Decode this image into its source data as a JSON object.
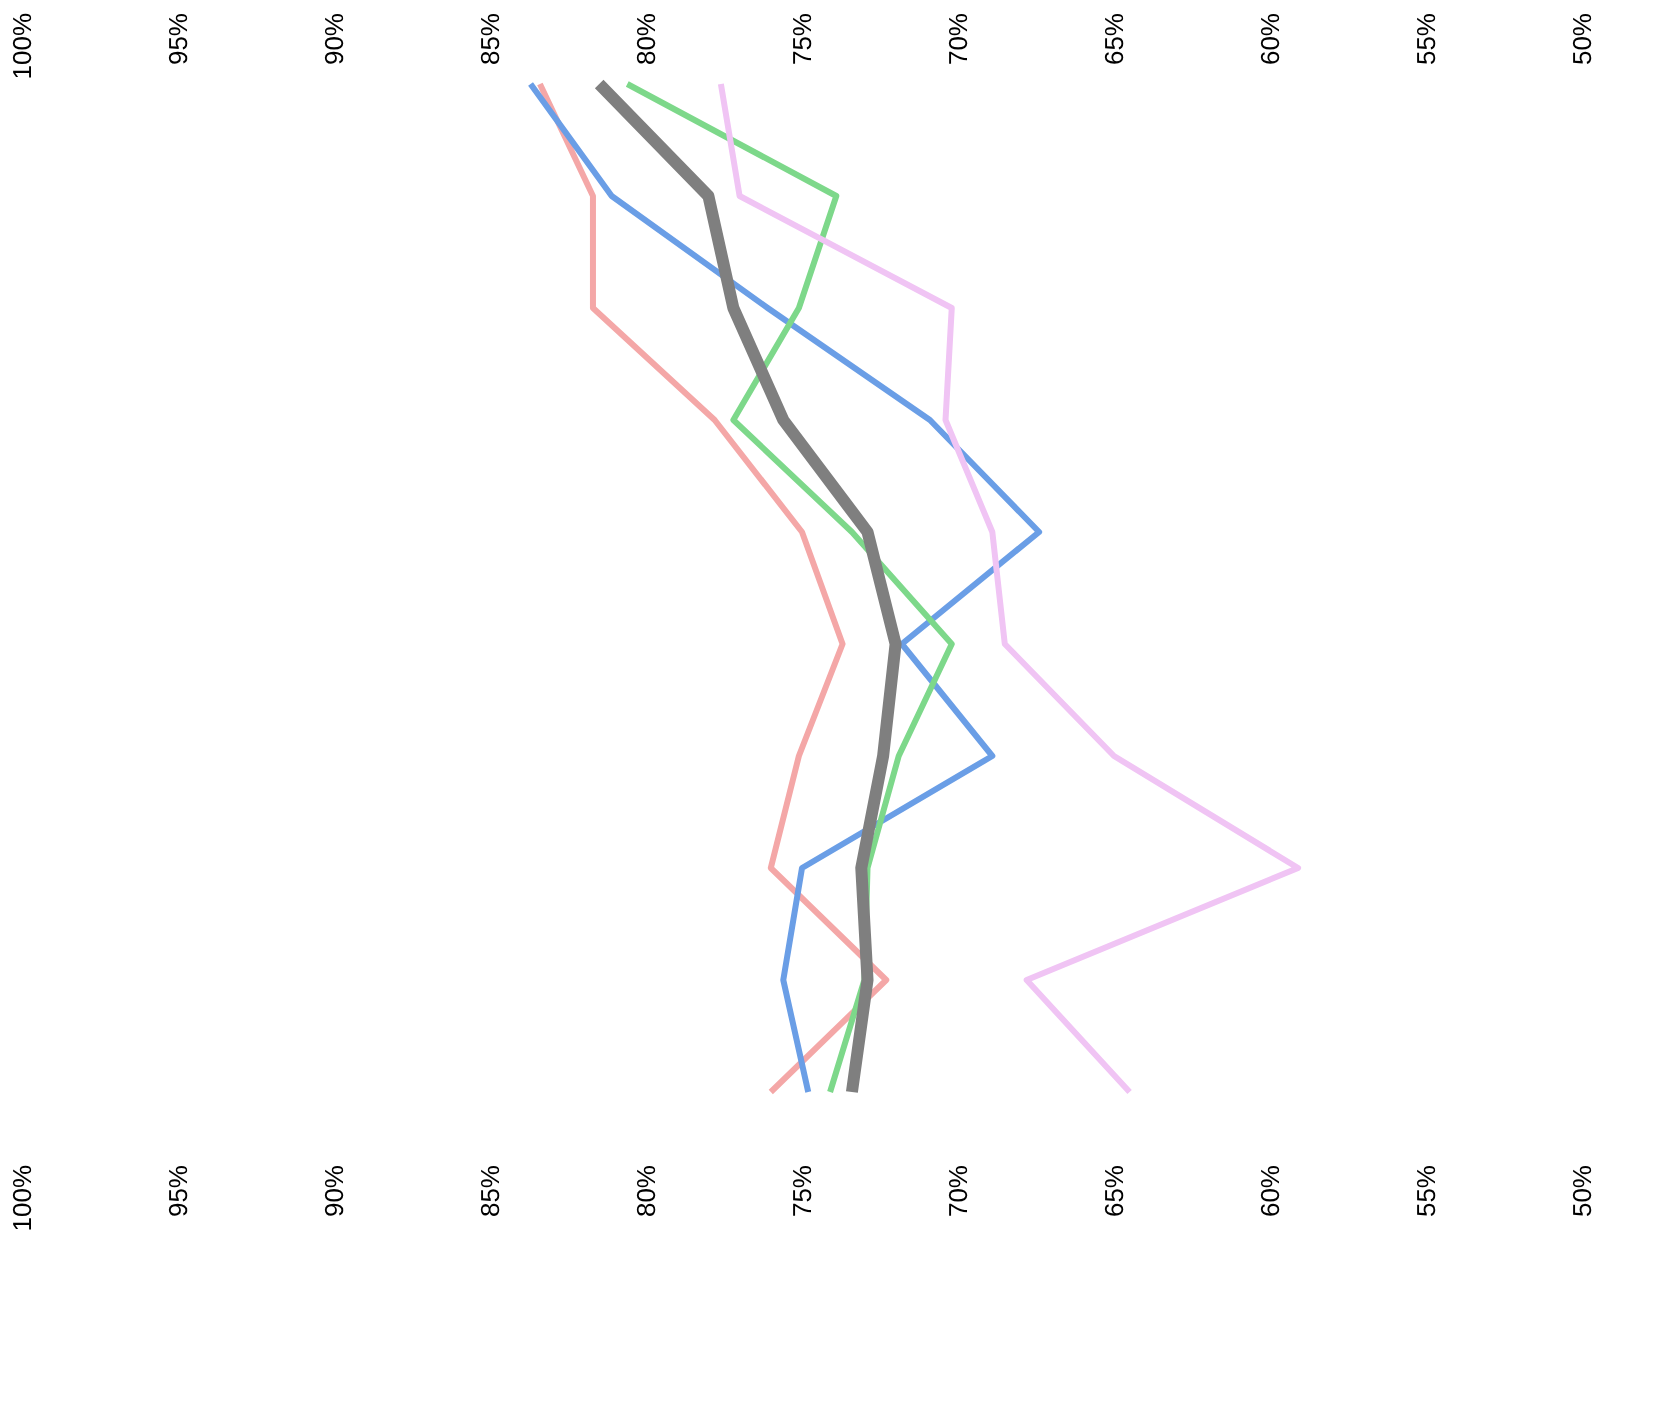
{
  "chart_data": {
    "type": "line",
    "categories": [
      null,
      null,
      null,
      null,
      null,
      null,
      null,
      null,
      null,
      null
    ],
    "series": [
      {
        "color": "#f4a7a7",
        "values": [
          83.4,
          81.7,
          81.7,
          77.8,
          75.0,
          73.7,
          75.1,
          76.0,
          72.3,
          76.0
        ]
      },
      {
        "color": "#6a9ee6",
        "values": [
          83.7,
          81.1,
          76.1,
          70.9,
          67.4,
          71.8,
          68.9,
          75.0,
          75.6,
          74.8
        ]
      },
      {
        "color": "#7dd88a",
        "values": [
          80.6,
          73.9,
          75.1,
          77.2,
          73.4,
          70.2,
          71.9,
          72.9,
          73.0,
          74.1
        ]
      },
      {
        "color": "#f0c4f4",
        "values": [
          77.6,
          77.0,
          70.2,
          70.4,
          68.9,
          68.5,
          65.0,
          59.1,
          67.8,
          64.5
        ]
      },
      {
        "color": "#7f7f7f",
        "values": [
          81.5,
          78.0,
          77.2,
          75.6,
          72.9,
          72.0,
          72.4,
          73.1,
          72.9,
          73.4
        ]
      }
    ],
    "xlim": [
      100,
      50
    ],
    "xticks": [
      {
        "value": 100,
        "label": "100%"
      },
      {
        "value": 95,
        "label": "95%"
      },
      {
        "value": 90,
        "label": "90%"
      },
      {
        "value": 85,
        "label": "85%"
      },
      {
        "value": 80,
        "label": "80%"
      },
      {
        "value": 75,
        "label": "75%"
      },
      {
        "value": 70,
        "label": "70%"
      },
      {
        "value": 65,
        "label": "65%"
      },
      {
        "value": 60,
        "label": "60%"
      },
      {
        "value": 55,
        "label": "55%"
      },
      {
        "value": 50,
        "label": "50%"
      }
    ],
    "x2lim": [
      100,
      50
    ],
    "x2ticks": [
      {
        "value": 100,
        "label": "100%"
      },
      {
        "value": 95,
        "label": "95%"
      },
      {
        "value": 90,
        "label": "90%"
      },
      {
        "value": 85,
        "label": "85%"
      },
      {
        "value": 80,
        "label": "80%"
      },
      {
        "value": 75,
        "label": "75%"
      },
      {
        "value": 70,
        "label": "70%"
      },
      {
        "value": 65,
        "label": "65%"
      },
      {
        "value": 60,
        "label": "60%"
      },
      {
        "value": 55,
        "label": "55%"
      },
      {
        "value": 50,
        "label": "50%"
      }
    ],
    "orientation": "horizontal",
    "tick_labels": "x",
    "grid": false
  }
}
